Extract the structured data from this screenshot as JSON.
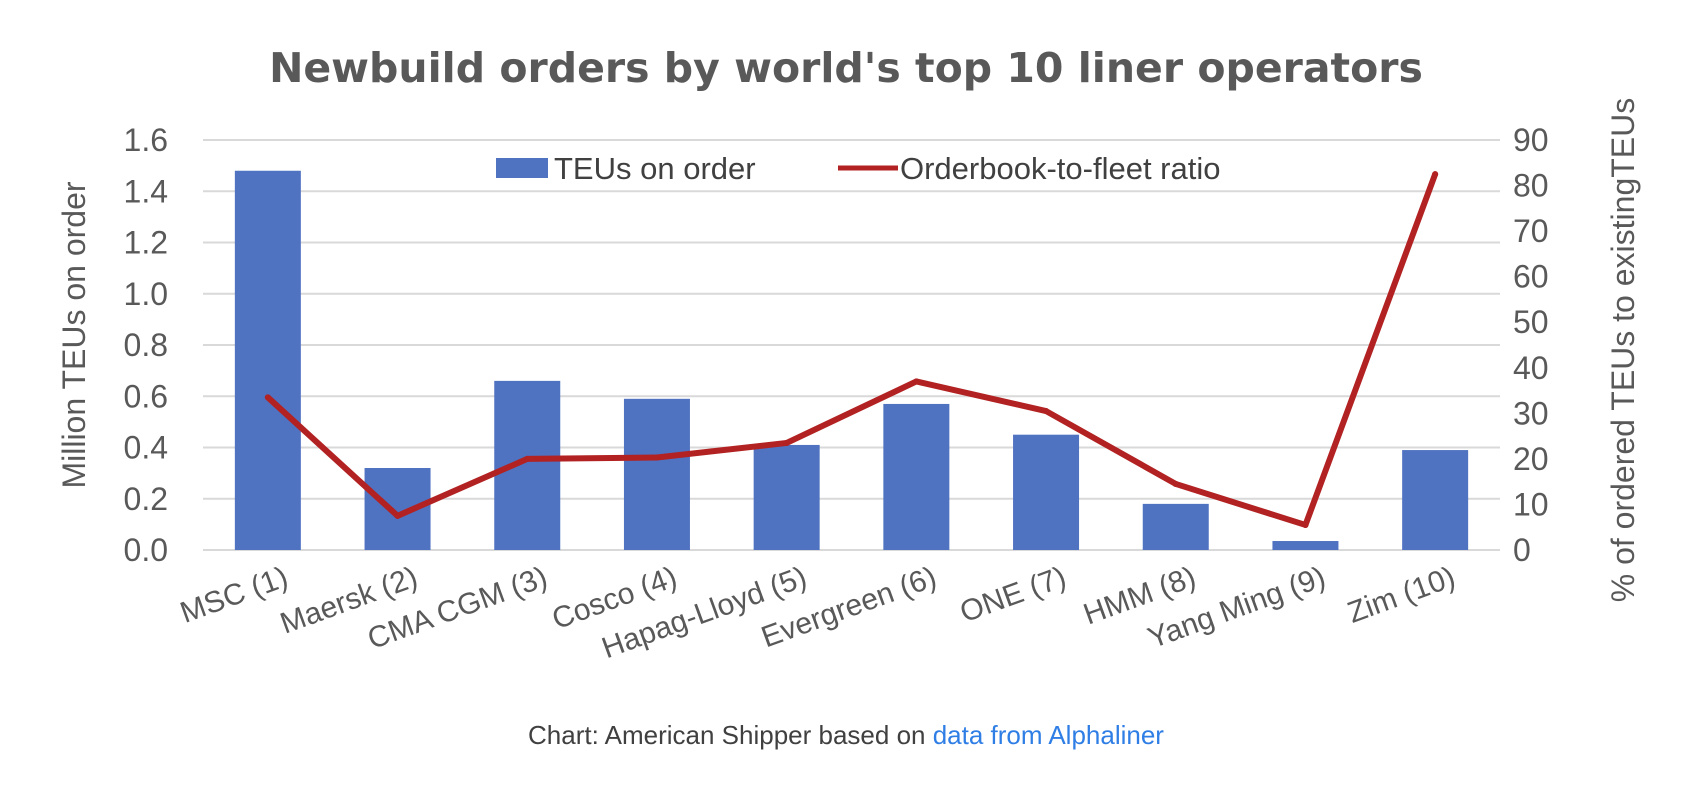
{
  "chart_data": {
    "type": "bar+line",
    "title": "Newbuild orders by world's top 10 liner operators",
    "categories": [
      "MSC (1)",
      "Maersk (2)",
      "CMA CGM (3)",
      "Cosco (4)",
      "Hapag-Lloyd (5)",
      "Evergreen (6)",
      "ONE (7)",
      "HMM (8)",
      "Yang Ming (9)",
      "Zim (10)"
    ],
    "series": [
      {
        "name": "TEUs on order",
        "type": "bar",
        "axis": "left",
        "color": "#4f72c1",
        "values": [
          1.48,
          0.32,
          0.66,
          0.59,
          0.41,
          0.57,
          0.45,
          0.18,
          0.035,
          0.39
        ]
      },
      {
        "name": "Orderbook-to-fleet ratio",
        "type": "line",
        "axis": "right",
        "color": "#b22222",
        "values": [
          33.5,
          7.5,
          20,
          20.3,
          23.5,
          37,
          30.5,
          14.5,
          5.5,
          82.5
        ]
      }
    ],
    "ylabel": "Million TEUs on order",
    "y2label": "% of ordered TEUs to existingTEUs",
    "ylim": [
      0,
      1.6
    ],
    "y2lim": [
      0,
      90
    ],
    "yticks": [
      "0.0",
      "0.2",
      "0.4",
      "0.6",
      "0.8",
      "1.0",
      "1.2",
      "1.4",
      "1.6"
    ],
    "y2ticks": [
      "0",
      "10",
      "20",
      "30",
      "40",
      "50",
      "60",
      "70",
      "80",
      "90"
    ],
    "legend_position": "top-center",
    "grid": true,
    "gridline_color": "#d9d9d9"
  },
  "caption": {
    "prefix": "Chart: American Shipper based on ",
    "link_text": "data from Alphaliner",
    "link_color": "#2f7ee6"
  }
}
